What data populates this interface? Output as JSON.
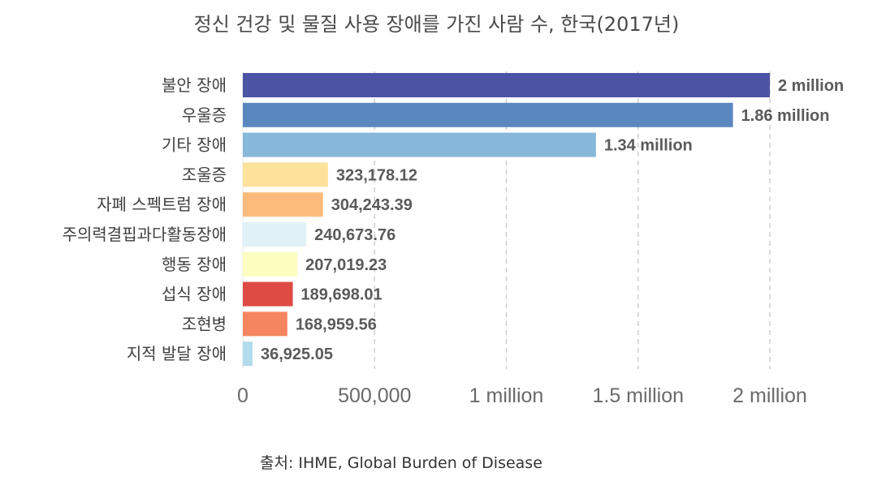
{
  "chart_data": {
    "type": "bar",
    "orientation": "horizontal",
    "title": "정신 건강 및 물질 사용 장애를 가진 사람 수, 한국(2017년)",
    "categories": [
      "불안 장애",
      "우울증",
      "기타 장애",
      "조울증",
      "자폐 스펙트럼 장애",
      "주의력결핍과다활동장애",
      "행동 장애",
      "섭식 장애",
      "조현병",
      "지적 발달 장애"
    ],
    "values": [
      2000000,
      1860000,
      1340000,
      323178.12,
      304243.39,
      240673.76,
      207019.23,
      189698.01,
      168959.56,
      36925.05
    ],
    "value_labels": [
      "2 million",
      "1.86 million",
      "1.34 million",
      "323,178.12",
      "304,243.39",
      "240,673.76",
      "207,019.23",
      "189,698.01",
      "168,959.56",
      "36,925.05"
    ],
    "colors": [
      "#4c53a4",
      "#5b87c0",
      "#87b8da",
      "#fde29b",
      "#fdbb7b",
      "#e1f1f8",
      "#fdfdc0",
      "#de4b45",
      "#f5855f",
      "#b2dcec"
    ],
    "xlim": [
      0,
      2200000
    ],
    "x_ticks": [
      0,
      500000,
      1000000,
      1500000,
      2000000
    ],
    "x_tick_labels": [
      "0",
      "500,000",
      "1 million",
      "1.5 million",
      "2 million"
    ],
    "grid": true,
    "source": "출처: IHME, Global Burden of Disease"
  }
}
